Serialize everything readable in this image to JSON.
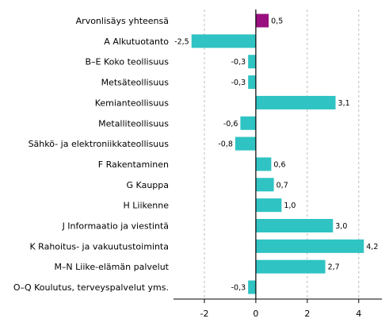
{
  "chart_data": {
    "type": "bar",
    "orientation": "horizontal",
    "categories": [
      "Arvonlisäys yhteensä",
      "A Alkutuotanto",
      "B–E Koko teollisuus",
      "Metsäteollisuus",
      "Kemianteollisuus",
      "Metalliteollisuus",
      "Sähkö- ja elektroniikkateollisuus",
      "F Rakentaminen",
      "G Kauppa",
      "H Liikenne",
      "J Informaatio ja viestintä",
      "K Rahoitus- ja vakuutustoiminta",
      "M–N Liike-elämän palvelut",
      "O–Q Koulutus, terveyspalvelut yms."
    ],
    "values": [
      0.5,
      -2.5,
      -0.3,
      -0.3,
      3.1,
      -0.6,
      -0.8,
      0.6,
      0.7,
      1.0,
      3.0,
      4.2,
      2.7,
      -0.3
    ],
    "value_labels": [
      "0,5",
      "-2,5",
      "-0,3",
      "-0,3",
      "3,1",
      "-0,6",
      "-0,8",
      "0,6",
      "0,7",
      "1,0",
      "3,0",
      "4,2",
      "2,7",
      "-0,3"
    ],
    "xticks": [
      -2,
      0,
      2,
      4
    ],
    "xtick_labels": [
      "-2",
      "0",
      "2",
      "4"
    ],
    "xlim": [
      -3.2,
      4.9
    ],
    "grid": "vertical dashed",
    "colors": {
      "highlight": "#990f7f",
      "bar": "#2fc3c3",
      "grid": "#bdbdbd",
      "axis": "#000000"
    },
    "highlight_index": 0,
    "title": "",
    "xlabel": "",
    "ylabel": ""
  }
}
